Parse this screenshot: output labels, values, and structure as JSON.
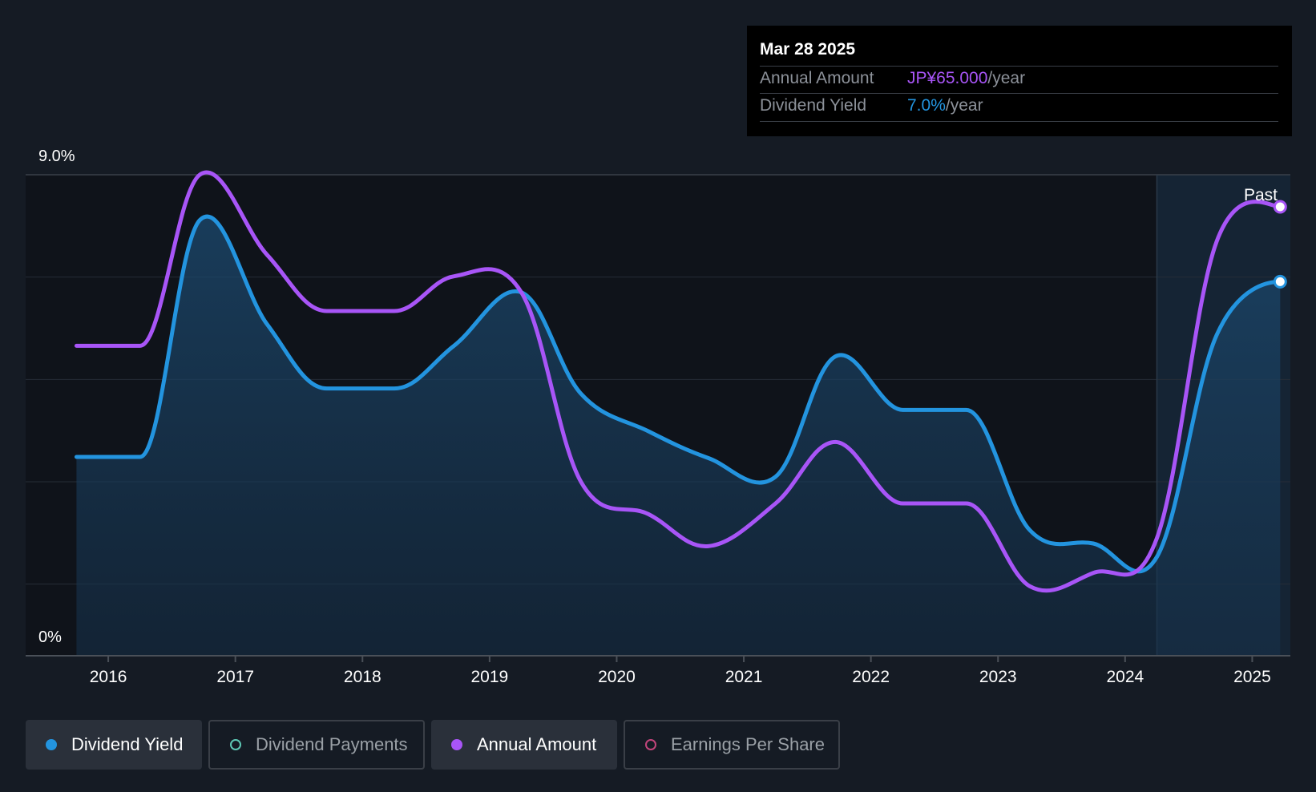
{
  "tooltip": {
    "date": "Mar 28 2025",
    "rows": [
      {
        "label": "Annual Amount",
        "value": "JP¥65.000",
        "unit": "/year"
      },
      {
        "label": "Dividend Yield",
        "value": "7.0%",
        "unit": "/year"
      }
    ]
  },
  "past_label": "Past",
  "legend": [
    {
      "label": "Dividend Yield",
      "active": true,
      "color": "#2394df"
    },
    {
      "label": "Dividend Payments",
      "active": false,
      "color": "#5ec8b5"
    },
    {
      "label": "Annual Amount",
      "active": true,
      "color": "#a855f7"
    },
    {
      "label": "Earnings Per Share",
      "active": false,
      "color": "#c2457b"
    }
  ],
  "chart_data": {
    "type": "line",
    "y_axis_labels": [
      "9.0%",
      "0%"
    ],
    "ylim": [
      0,
      9.0
    ],
    "xlim": [
      2015.35,
      2025.3
    ],
    "x_ticks": [
      "2016",
      "2017",
      "2018",
      "2019",
      "2020",
      "2021",
      "2022",
      "2023",
      "2024",
      "2025"
    ],
    "gridlines": true,
    "forecast_divider": 2024.25,
    "series": [
      {
        "name": "Dividend Yield",
        "color": "#2394df",
        "filled": true,
        "points": [
          [
            2015.75,
            3.72
          ],
          [
            2016.25,
            3.72
          ],
          [
            2016.72,
            8.15
          ],
          [
            2017.25,
            6.2
          ],
          [
            2017.72,
            5.0
          ],
          [
            2018.25,
            5.0
          ],
          [
            2018.72,
            5.8
          ],
          [
            2019.25,
            6.8
          ],
          [
            2019.72,
            4.9
          ],
          [
            2020.25,
            4.2
          ],
          [
            2020.72,
            3.7
          ],
          [
            2021.25,
            3.35
          ],
          [
            2021.72,
            5.6
          ],
          [
            2022.25,
            4.6
          ],
          [
            2022.75,
            4.6
          ],
          [
            2023.25,
            2.35
          ],
          [
            2023.75,
            2.1
          ],
          [
            2024.25,
            1.85
          ],
          [
            2024.72,
            6.0
          ],
          [
            2025.22,
            7.0
          ]
        ]
      },
      {
        "name": "Annual Amount",
        "color": "#a855f7",
        "filled": false,
        "points": [
          [
            2015.75,
            5.8
          ],
          [
            2016.25,
            5.8
          ],
          [
            2016.72,
            9.0
          ],
          [
            2017.25,
            7.5
          ],
          [
            2017.72,
            6.45
          ],
          [
            2018.25,
            6.45
          ],
          [
            2018.72,
            7.1
          ],
          [
            2019.25,
            6.8
          ],
          [
            2019.72,
            3.25
          ],
          [
            2020.25,
            2.65
          ],
          [
            2020.72,
            2.05
          ],
          [
            2021.25,
            2.85
          ],
          [
            2021.72,
            4.0
          ],
          [
            2022.25,
            2.85
          ],
          [
            2022.75,
            2.85
          ],
          [
            2023.25,
            1.3
          ],
          [
            2023.75,
            1.55
          ],
          [
            2024.25,
            2.2
          ],
          [
            2024.72,
            7.75
          ],
          [
            2025.22,
            8.4
          ]
        ]
      }
    ]
  }
}
